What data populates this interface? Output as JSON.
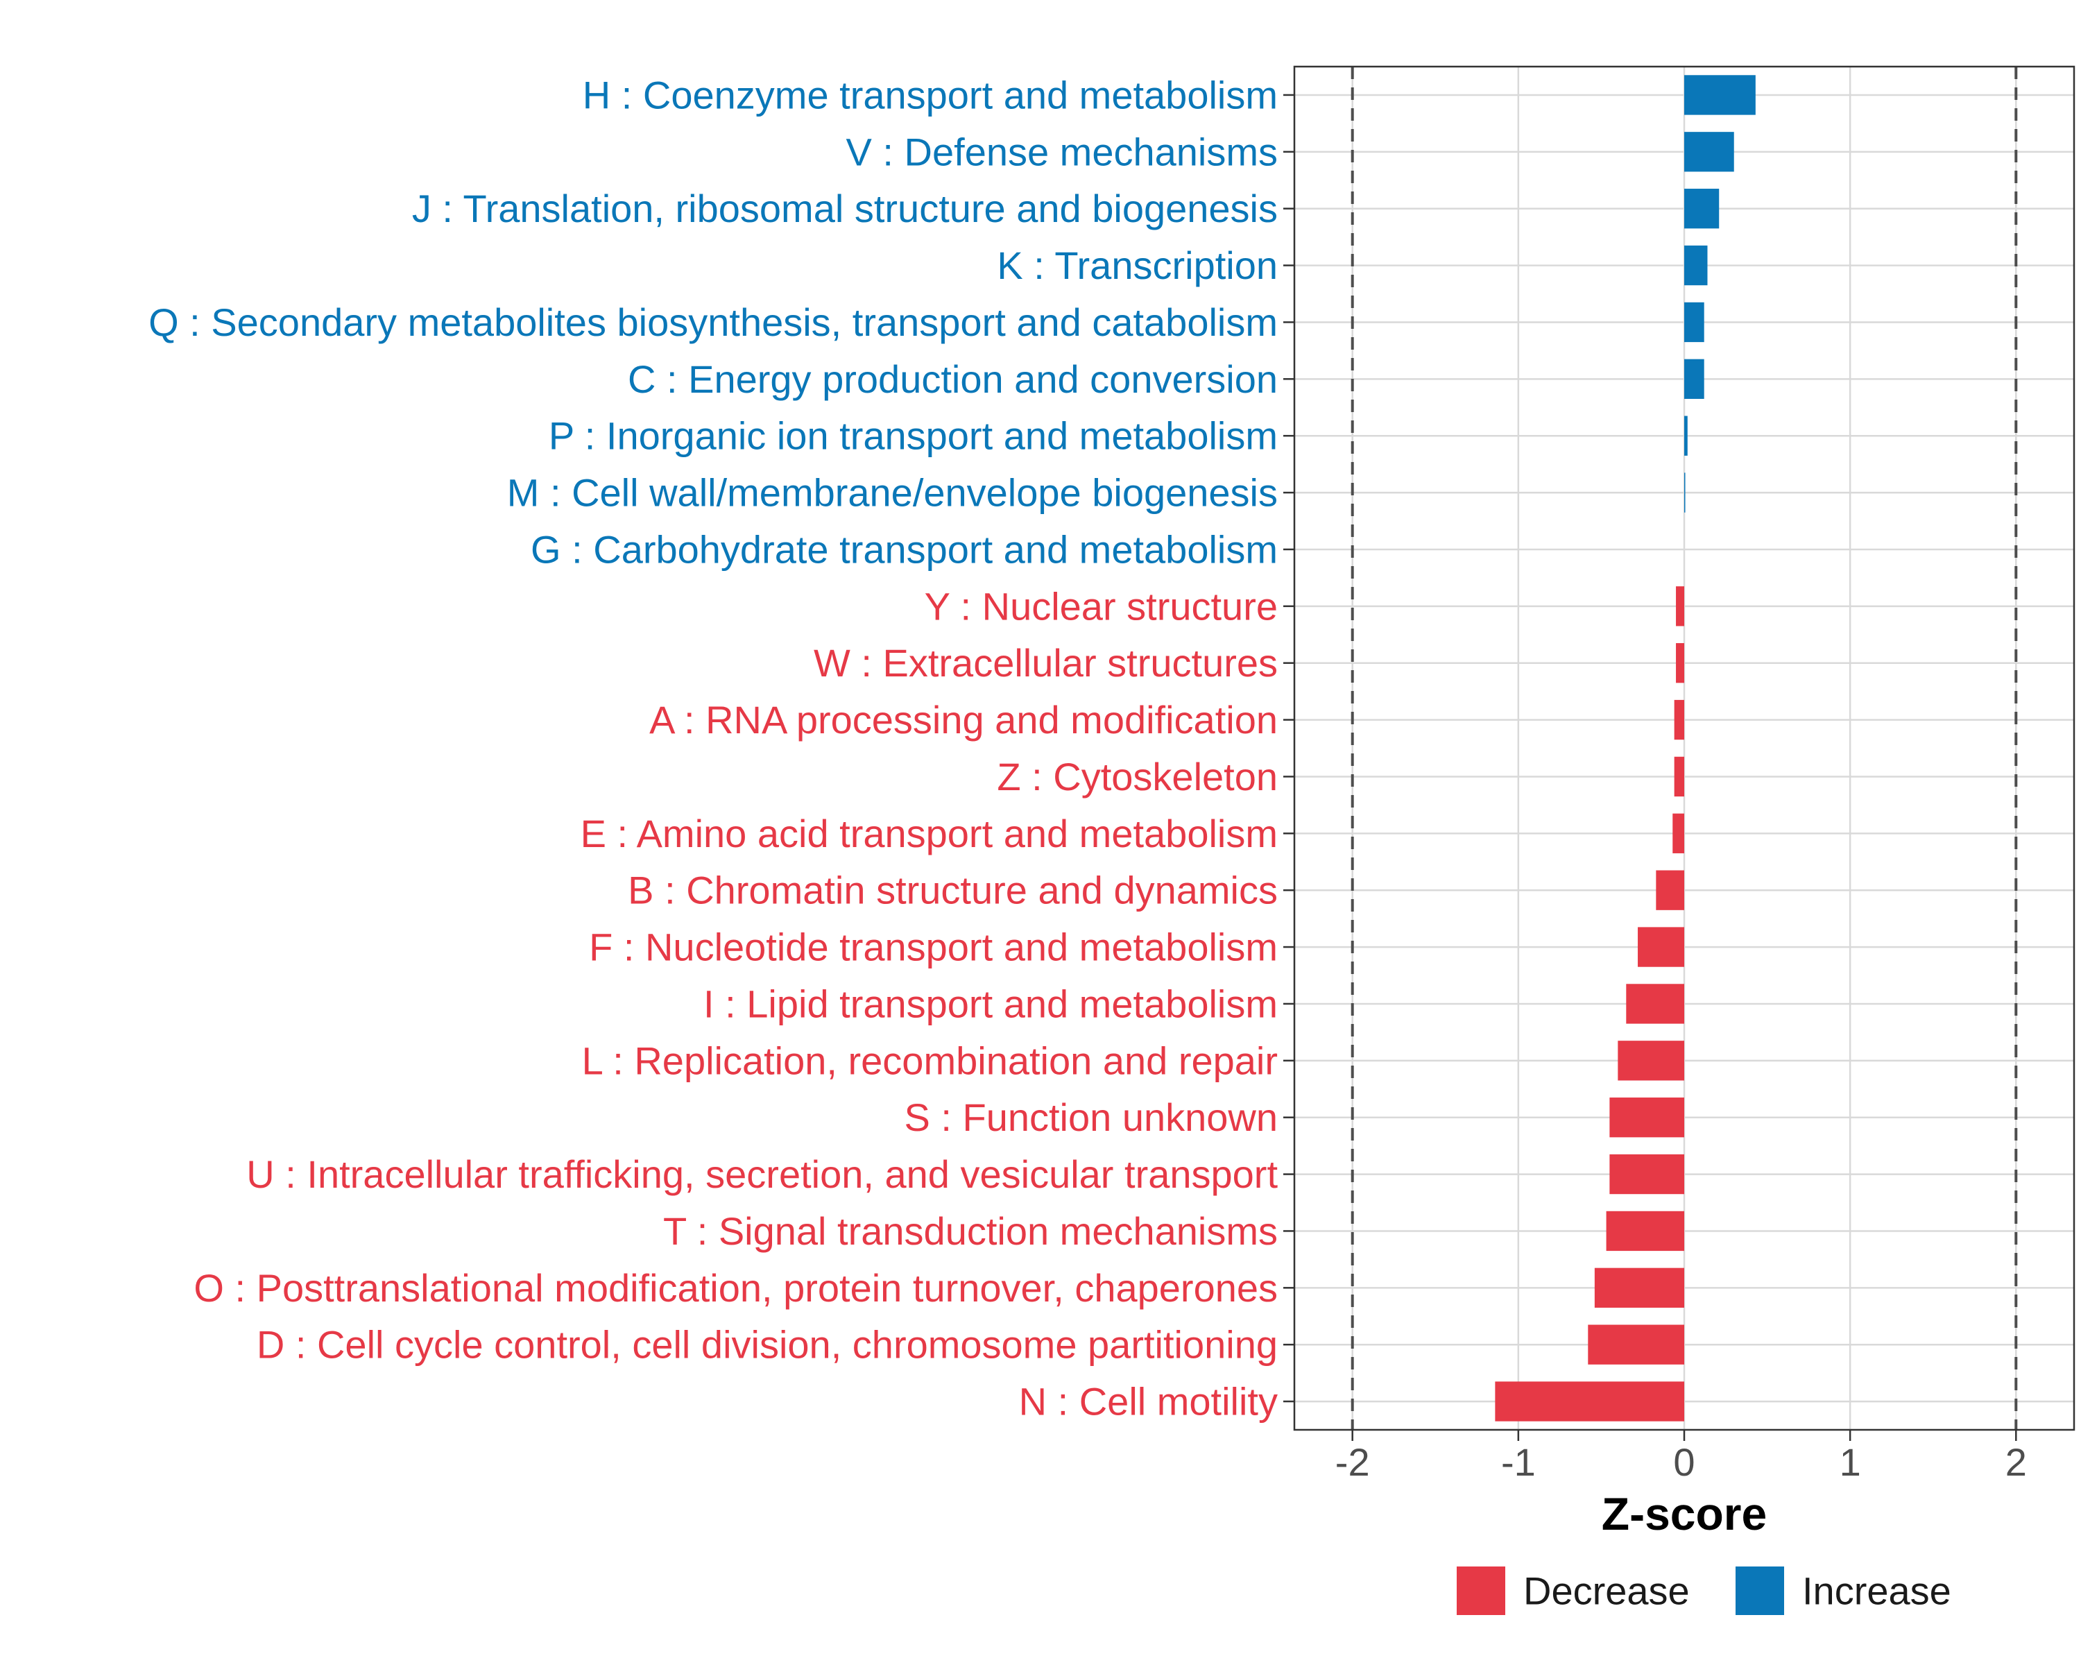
{
  "chart_data": {
    "type": "bar",
    "orientation": "horizontal",
    "title": "",
    "xlabel": "Z-score",
    "ylabel": "",
    "xlim": [
      -2.35,
      2.35
    ],
    "x_ticks": [
      -2,
      -1,
      0,
      1,
      2
    ],
    "x_tick_labels": [
      "-2",
      "-1",
      "0",
      "1",
      "2"
    ],
    "reference_lines": [
      -2,
      2
    ],
    "grid": true,
    "colors": {
      "Decrease": "#e63946",
      "Increase": "#0a77b8"
    },
    "legend": {
      "position": "bottom",
      "entries": [
        "Decrease",
        "Increase"
      ]
    },
    "bars": [
      {
        "label": "H : Coenzyme transport and metabolism",
        "value": 0.43,
        "group": "Increase"
      },
      {
        "label": "V : Defense mechanisms",
        "value": 0.3,
        "group": "Increase"
      },
      {
        "label": "J : Translation, ribosomal structure and biogenesis",
        "value": 0.21,
        "group": "Increase"
      },
      {
        "label": "K : Transcription",
        "value": 0.14,
        "group": "Increase"
      },
      {
        "label": "Q : Secondary metabolites biosynthesis, transport and catabolism",
        "value": 0.12,
        "group": "Increase"
      },
      {
        "label": "C : Energy production and conversion",
        "value": 0.12,
        "group": "Increase"
      },
      {
        "label": "P : Inorganic ion transport and metabolism",
        "value": 0.02,
        "group": "Increase"
      },
      {
        "label": "M : Cell wall/membrane/envelope biogenesis",
        "value": 0.005,
        "group": "Increase"
      },
      {
        "label": "G : Carbohydrate transport and metabolism",
        "value": 0.0,
        "group": "Increase"
      },
      {
        "label": "Y : Nuclear structure",
        "value": -0.05,
        "group": "Decrease"
      },
      {
        "label": "W : Extracellular structures",
        "value": -0.05,
        "group": "Decrease"
      },
      {
        "label": "A : RNA processing and modification",
        "value": -0.06,
        "group": "Decrease"
      },
      {
        "label": "Z : Cytoskeleton",
        "value": -0.06,
        "group": "Decrease"
      },
      {
        "label": "E : Amino acid transport and metabolism",
        "value": -0.07,
        "group": "Decrease"
      },
      {
        "label": "B : Chromatin structure and dynamics",
        "value": -0.17,
        "group": "Decrease"
      },
      {
        "label": "F : Nucleotide transport and metabolism",
        "value": -0.28,
        "group": "Decrease"
      },
      {
        "label": "I : Lipid transport and metabolism",
        "value": -0.35,
        "group": "Decrease"
      },
      {
        "label": "L : Replication, recombination and repair",
        "value": -0.4,
        "group": "Decrease"
      },
      {
        "label": "S : Function unknown",
        "value": -0.45,
        "group": "Decrease"
      },
      {
        "label": "U : Intracellular trafficking, secretion, and vesicular transport",
        "value": -0.45,
        "group": "Decrease"
      },
      {
        "label": "T : Signal transduction mechanisms",
        "value": -0.47,
        "group": "Decrease"
      },
      {
        "label": "O : Posttranslational modification, protein turnover, chaperones",
        "value": -0.54,
        "group": "Decrease"
      },
      {
        "label": "D : Cell cycle control, cell division, chromosome partitioning",
        "value": -0.58,
        "group": "Decrease"
      },
      {
        "label": "N : Cell motility",
        "value": -1.14,
        "group": "Decrease"
      }
    ]
  }
}
